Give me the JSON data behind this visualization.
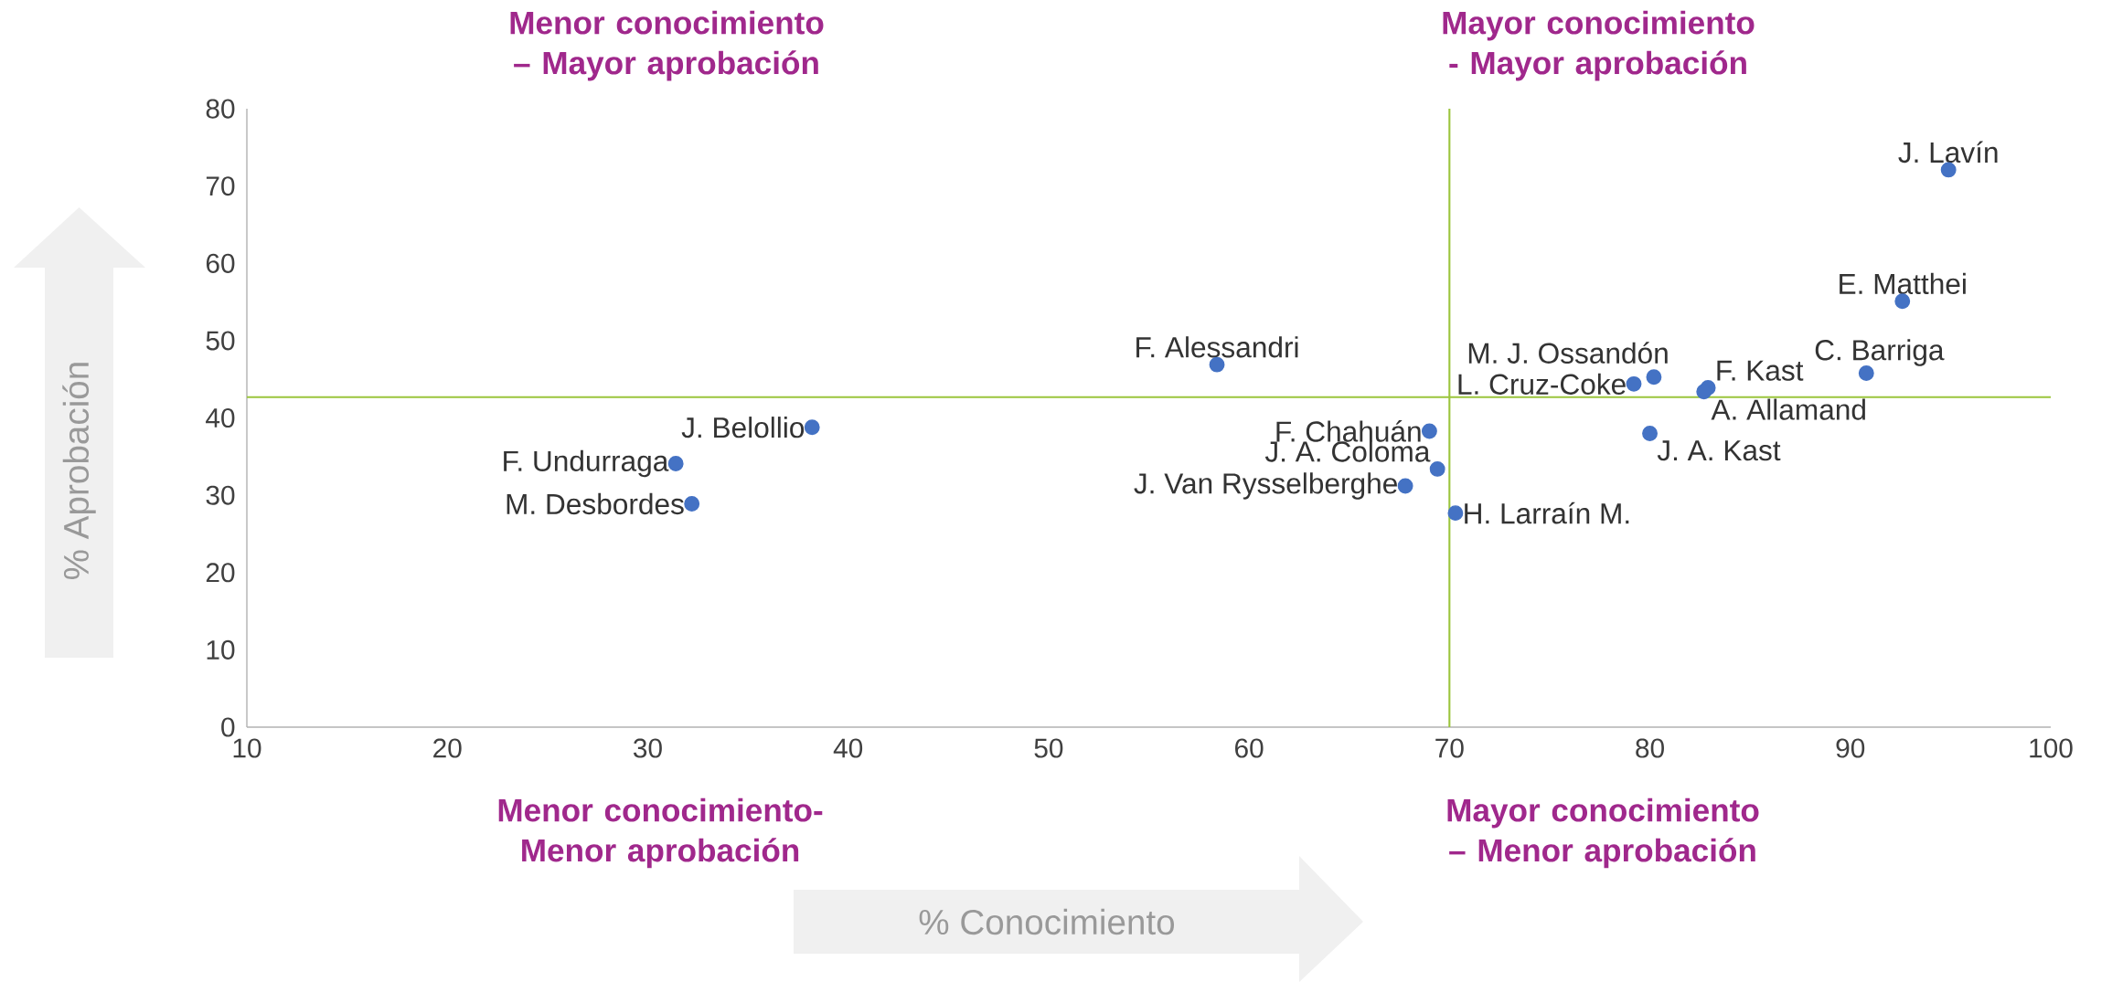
{
  "chart_data": {
    "type": "scatter",
    "xlabel": "% Conocimiento",
    "ylabel": "% Aprobación",
    "xlim": [
      10,
      100
    ],
    "ylim": [
      0,
      80
    ],
    "xticks": [
      10,
      20,
      30,
      40,
      50,
      60,
      70,
      80,
      90,
      100
    ],
    "yticks": [
      0,
      10,
      20,
      30,
      40,
      50,
      60,
      70,
      80
    ],
    "marker": "circle",
    "grid": false,
    "ref_lines": [
      {
        "axis": "x",
        "value": 70,
        "color": "#9BC53D"
      },
      {
        "axis": "y",
        "value": 42.7,
        "color": "#9BC53D"
      }
    ],
    "annotations": [
      "Menor conocimiento – Mayor aprobación",
      "Mayor conocimiento - Mayor aprobación",
      "Menor conocimiento- Menor aprobación",
      "Mayor conocimiento – Menor aprobación"
    ],
    "series": [
      {
        "name": "J. Lavín",
        "color": "#4472C4",
        "x": [
          94.9
        ],
        "values": [
          72.1
        ]
      },
      {
        "name": "E. Matthei",
        "color": "#4472C4",
        "x": [
          92.6
        ],
        "values": [
          55.1
        ]
      },
      {
        "name": "C. Barriga",
        "color": "#4472C4",
        "x": [
          90.8
        ],
        "values": [
          45.8
        ]
      },
      {
        "name": "F. Kast",
        "color": "#4472C4",
        "x": [
          82.9
        ],
        "values": [
          43.9
        ]
      },
      {
        "name": "A. Allamand",
        "color": "#4472C4",
        "x": [
          82.7
        ],
        "values": [
          43.4
        ]
      },
      {
        "name": "M. J. Ossandón",
        "color": "#4472C4",
        "x": [
          80.2
        ],
        "values": [
          45.3
        ]
      },
      {
        "name": "L. Cruz-Coke",
        "color": "#4472C4",
        "x": [
          79.2
        ],
        "values": [
          44.4
        ]
      },
      {
        "name": "J. A. Kast",
        "color": "#4472C4",
        "x": [
          80.0
        ],
        "values": [
          38.0
        ]
      },
      {
        "name": "F. Alessandri",
        "color": "#4472C4",
        "x": [
          58.4
        ],
        "values": [
          46.9
        ]
      },
      {
        "name": "F. Chahuán",
        "color": "#4472C4",
        "x": [
          69.0
        ],
        "values": [
          38.3
        ]
      },
      {
        "name": "J. A. Coloma",
        "color": "#4472C4",
        "x": [
          69.4
        ],
        "values": [
          33.4
        ]
      },
      {
        "name": "J. Van Rysselberghe",
        "color": "#4472C4",
        "x": [
          67.8
        ],
        "values": [
          31.2
        ]
      },
      {
        "name": "H. Larraín M.",
        "color": "#4472C4",
        "x": [
          70.3
        ],
        "values": [
          27.7
        ]
      },
      {
        "name": "J. Belollio",
        "color": "#4472C4",
        "x": [
          38.2
        ],
        "values": [
          38.8
        ]
      },
      {
        "name": "F. Undurraga",
        "color": "#4472C4",
        "x": [
          31.4
        ],
        "values": [
          34.1
        ]
      },
      {
        "name": "M. Desbordes",
        "color": "#4472C4",
        "x": [
          32.2
        ],
        "values": [
          28.9
        ]
      }
    ]
  }
}
